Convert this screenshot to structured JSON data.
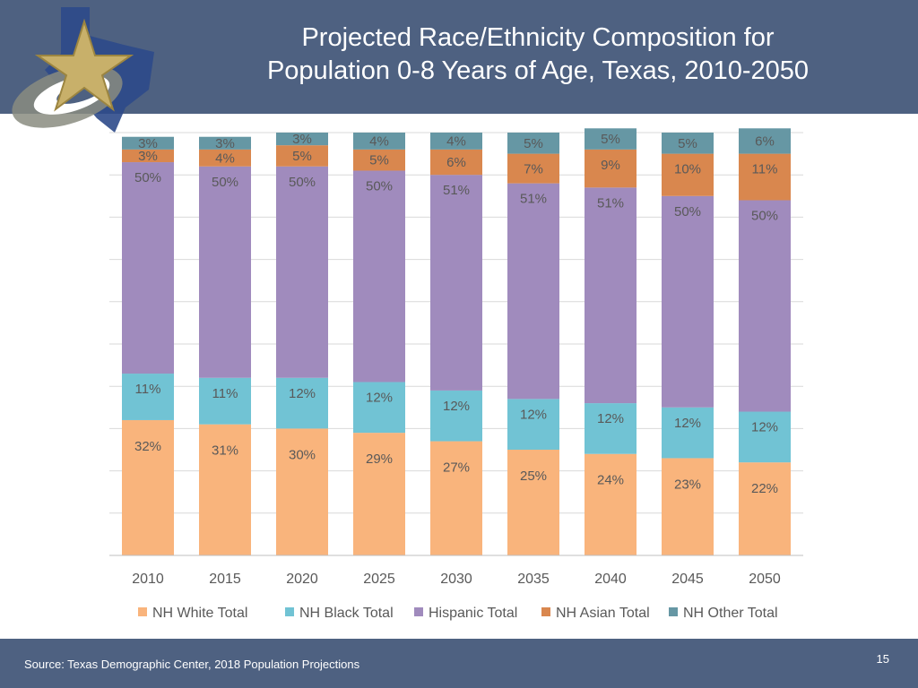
{
  "slide": {
    "title_line1": "Projected Race/Ethnicity Composition for",
    "title_line2": "Population 0-8 Years of Age, Texas, 2010-2050",
    "source": "Source: Texas Demographic Center, 2018 Population Projections",
    "page_number": "15"
  },
  "colors": {
    "header_bg": "#4e6181",
    "gridline": "#d9d9d9",
    "axis": "#bfbfbf",
    "text": "#595959"
  },
  "chart_data": {
    "type": "bar",
    "stacked": true,
    "title": "Projected Race/Ethnicity Composition for Population 0-8 Years of Age, Texas, 2010-2050",
    "xlabel": "",
    "ylabel": "",
    "ylim": [
      0,
      100
    ],
    "grid": true,
    "legend_position": "bottom",
    "categories": [
      "2010",
      "2015",
      "2020",
      "2025",
      "2030",
      "2035",
      "2040",
      "2045",
      "2050"
    ],
    "series": [
      {
        "name": "NH White Total",
        "color": "#f9b47c",
        "values": [
          32,
          31,
          30,
          29,
          27,
          25,
          24,
          23,
          22
        ]
      },
      {
        "name": "NH Black Total",
        "color": "#71c3d4",
        "values": [
          11,
          11,
          12,
          12,
          12,
          12,
          12,
          12,
          12
        ]
      },
      {
        "name": "Hispanic Total",
        "color": "#a08bbd",
        "values": [
          50,
          50,
          50,
          50,
          51,
          51,
          51,
          50,
          50
        ]
      },
      {
        "name": "NH Asian Total",
        "color": "#d9874e",
        "values": [
          3,
          4,
          5,
          5,
          6,
          7,
          9,
          10,
          11
        ]
      },
      {
        "name": "NH Other Total",
        "color": "#6697a4",
        "values": [
          3,
          3,
          3,
          4,
          4,
          5,
          5,
          5,
          6
        ]
      }
    ]
  }
}
